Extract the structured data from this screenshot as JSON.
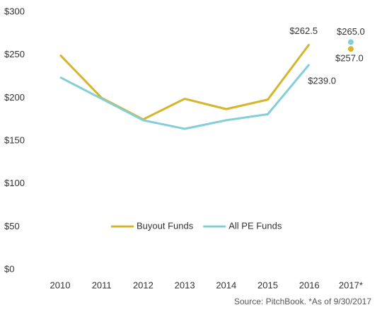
{
  "chart_data": {
    "type": "line",
    "categories": [
      "2010",
      "2011",
      "2012",
      "2013",
      "2014",
      "2015",
      "2016",
      "2017*"
    ],
    "series": [
      {
        "name": "Buyout Funds",
        "color": "#d6b42c",
        "values": [
          250,
          200,
          175,
          199,
          187,
          198,
          262.5,
          257.0
        ],
        "value_labels": [
          null,
          null,
          null,
          null,
          null,
          null,
          "$262.5",
          "$257.0"
        ]
      },
      {
        "name": "All PE Funds",
        "color": "#84ced7",
        "values": [
          224,
          199,
          174,
          164,
          174,
          181,
          239.0,
          265.0
        ],
        "value_labels": [
          null,
          null,
          null,
          null,
          null,
          null,
          "$239.0",
          "$265.0"
        ]
      }
    ],
    "ylim": [
      0,
      300
    ],
    "yticks": [
      {
        "value": 0,
        "label": "$0"
      },
      {
        "value": 50,
        "label": "$50"
      },
      {
        "value": 100,
        "label": "$100"
      },
      {
        "value": 150,
        "label": "$150"
      },
      {
        "value": 200,
        "label": "$200"
      },
      {
        "value": 250,
        "label": "$250"
      },
      {
        "value": 300,
        "label": "$300"
      }
    ],
    "grid": false,
    "separate_last_point": true,
    "legend": "bottom",
    "source": "Source: PitchBook. *As of 9/30/2017"
  }
}
